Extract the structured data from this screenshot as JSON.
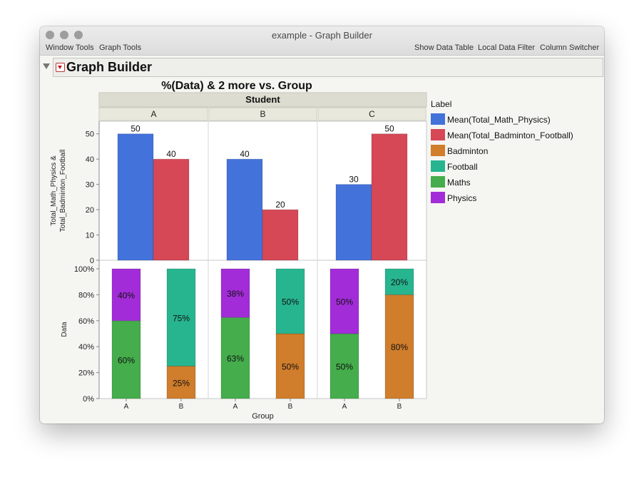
{
  "window": {
    "title": "example - Graph Builder",
    "menu_left": [
      "Window Tools",
      "Graph Tools"
    ],
    "menu_right": [
      "Show Data Table",
      "Local Data Filter",
      "Column Switcher"
    ]
  },
  "report": {
    "title": "Graph Builder"
  },
  "chart_data": {
    "type": "bar",
    "title": "%(Data) & 2 more vs. Group",
    "facet_label": "Student",
    "facets": [
      "A",
      "B",
      "C"
    ],
    "xlabel": "Group",
    "legend": {
      "title": "Label",
      "placement": "right",
      "items": [
        {
          "name": "Mean(Total_Math_Physics)",
          "color": "#4472db"
        },
        {
          "name": "Mean(Total_Badminton_Football)",
          "color": "#d64856"
        },
        {
          "name": "Badminton",
          "color": "#d07d2c"
        },
        {
          "name": "Football",
          "color": "#27b58f"
        },
        {
          "name": "Maths",
          "color": "#45ad4c"
        },
        {
          "name": "Physics",
          "color": "#a22dd8"
        }
      ]
    },
    "top": {
      "ylabel_lines": [
        "Total_Math_Physics &",
        "Total_Badminton_Football"
      ],
      "ylim": [
        0,
        55
      ],
      "yticks": [
        "0",
        "10",
        "20",
        "30",
        "40",
        "50"
      ],
      "panels": [
        {
          "facet": "A",
          "values": [
            50,
            40
          ],
          "labels": [
            "50",
            "40"
          ]
        },
        {
          "facet": "B",
          "values": [
            40,
            20
          ],
          "labels": [
            "40",
            "20"
          ]
        },
        {
          "facet": "C",
          "values": [
            30,
            50
          ],
          "labels": [
            "30",
            "50"
          ]
        }
      ]
    },
    "bottom": {
      "ylabel": "Data",
      "ylim": [
        0,
        100
      ],
      "yticks": [
        "0%",
        "20%",
        "40%",
        "60%",
        "80%",
        "100%"
      ],
      "group_labels": [
        "A",
        "B"
      ],
      "panels": [
        {
          "facet": "A",
          "stacks": [
            [
              {
                "series": "Maths",
                "value": 60,
                "label": "60%"
              },
              {
                "series": "Physics",
                "value": 40,
                "label": "40%"
              }
            ],
            [
              {
                "series": "Badminton",
                "value": 25,
                "label": "25%"
              },
              {
                "series": "Football",
                "value": 75,
                "label": "75%"
              }
            ]
          ]
        },
        {
          "facet": "B",
          "stacks": [
            [
              {
                "series": "Maths",
                "value": 62.5,
                "label": "63%"
              },
              {
                "series": "Physics",
                "value": 37.5,
                "label": "38%"
              }
            ],
            [
              {
                "series": "Badminton",
                "value": 50,
                "label": "50%"
              },
              {
                "series": "Football",
                "value": 50,
                "label": "50%"
              }
            ]
          ]
        },
        {
          "facet": "C",
          "stacks": [
            [
              {
                "series": "Maths",
                "value": 50,
                "label": "50%"
              },
              {
                "series": "Physics",
                "value": 50,
                "label": "50%"
              }
            ],
            [
              {
                "series": "Badminton",
                "value": 80,
                "label": "80%"
              },
              {
                "series": "Football",
                "value": 20,
                "label": "20%"
              }
            ]
          ]
        }
      ]
    }
  }
}
